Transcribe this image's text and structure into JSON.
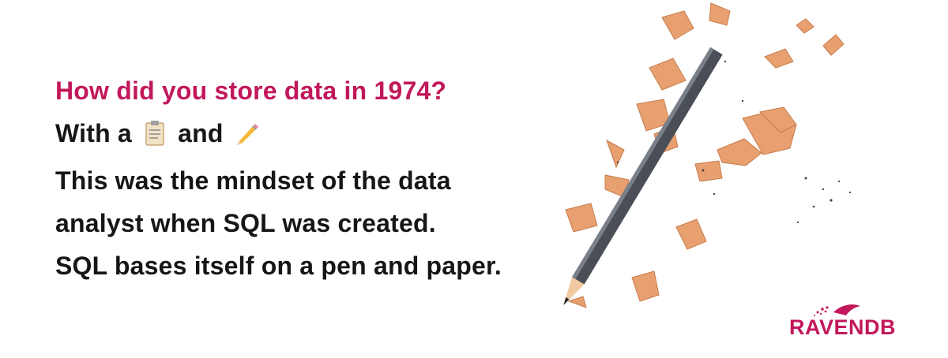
{
  "headline": "How did you store data in 1974?",
  "line2": {
    "prefix": "With a",
    "middle": "and"
  },
  "line3": "This was the mindset of the data",
  "line4": "analyst when SQL was created.",
  "line5": "SQL bases itself on a pen and paper.",
  "emojis": {
    "first": "clipboard-icon",
    "second": "pencil-icon"
  },
  "logo": {
    "text": "RAVENDB"
  },
  "colors": {
    "accent": "#c2185b",
    "text": "#161616",
    "shaving": "#e8a070"
  }
}
